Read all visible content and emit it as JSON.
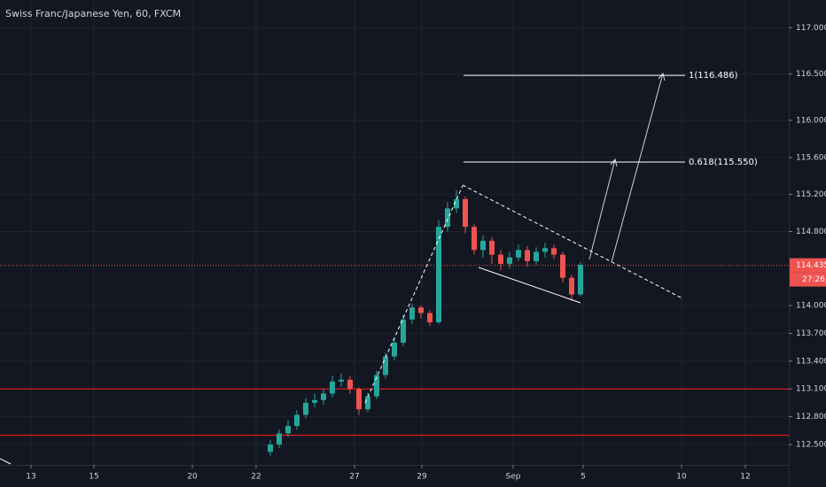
{
  "header": {
    "title": "Swiss Franc/Japanese Yen, 60, FXCM"
  },
  "chart_data": {
    "type": "candlestick",
    "x": [
      61,
      63,
      65,
      67,
      69,
      71,
      73,
      75,
      77,
      79,
      81,
      83,
      85,
      87,
      89,
      91,
      93,
      95,
      97,
      99,
      101,
      103,
      105,
      107,
      109,
      111,
      113,
      115,
      117,
      119,
      121,
      123,
      125,
      127,
      129,
      131
    ],
    "open": [
      112.42,
      112.5,
      112.62,
      112.7,
      112.82,
      112.95,
      112.98,
      113.05,
      113.18,
      113.2,
      113.1,
      112.88,
      113.02,
      113.25,
      113.45,
      113.6,
      113.85,
      113.98,
      113.92,
      113.82,
      114.85,
      115.05,
      115.15,
      114.85,
      114.6,
      114.7,
      114.55,
      114.45,
      114.52,
      114.6,
      114.48,
      114.58,
      114.62,
      114.55,
      114.3,
      114.12
    ],
    "high": [
      112.55,
      112.66,
      112.76,
      112.87,
      113.0,
      113.05,
      113.1,
      113.24,
      113.27,
      113.24,
      113.12,
      113.06,
      113.3,
      113.49,
      113.65,
      113.9,
      114.02,
      114.0,
      113.95,
      114.92,
      115.12,
      115.25,
      115.18,
      114.88,
      114.76,
      114.74,
      114.6,
      114.58,
      114.66,
      114.64,
      114.63,
      114.68,
      114.66,
      114.58,
      114.33,
      114.47
    ],
    "low": [
      112.38,
      112.46,
      112.58,
      112.66,
      112.78,
      112.9,
      112.93,
      113.01,
      113.12,
      113.05,
      112.82,
      112.85,
      112.99,
      113.21,
      113.41,
      113.56,
      113.8,
      113.86,
      113.78,
      113.8,
      114.8,
      115.0,
      114.78,
      114.55,
      114.52,
      114.45,
      114.38,
      114.4,
      114.48,
      114.42,
      114.44,
      114.52,
      114.5,
      114.25,
      114.05,
      114.1
    ],
    "close": [
      112.5,
      112.62,
      112.7,
      112.82,
      112.95,
      112.98,
      113.05,
      113.18,
      113.2,
      113.1,
      112.88,
      113.02,
      113.25,
      113.45,
      113.6,
      113.85,
      113.98,
      113.92,
      113.82,
      114.85,
      115.05,
      115.15,
      114.85,
      114.6,
      114.7,
      114.55,
      114.45,
      114.52,
      114.6,
      114.48,
      114.58,
      114.62,
      114.55,
      114.3,
      114.12,
      114.44
    ],
    "up_color": "#26a69a",
    "down_color": "#ef5350",
    "xlim": [
      0,
      178
    ],
    "xticks": [
      {
        "value": 7,
        "label": "13"
      },
      {
        "value": 21.2,
        "label": "15"
      },
      {
        "value": 43.4,
        "label": "20"
      },
      {
        "value": 57.8,
        "label": "22"
      },
      {
        "value": 80,
        "label": "27"
      },
      {
        "value": 95.2,
        "label": "29"
      },
      {
        "value": 115.8,
        "label": "Sep"
      },
      {
        "value": 131.6,
        "label": "5"
      },
      {
        "value": 153.8,
        "label": "10"
      },
      {
        "value": 168.2,
        "label": "12"
      }
    ],
    "ylim": [
      112.28,
      117.3
    ],
    "yticks": [
      {
        "value": 117,
        "label": "117.000"
      },
      {
        "value": 116.5,
        "label": "116.500"
      },
      {
        "value": 116,
        "label": "116.000"
      },
      {
        "value": 115.6,
        "label": "115.600"
      },
      {
        "value": 115.2,
        "label": "115.200"
      },
      {
        "value": 114.8,
        "label": "114.800"
      },
      {
        "value": 114,
        "label": "114.000"
      },
      {
        "value": 113.7,
        "label": "113.700"
      },
      {
        "value": 113.4,
        "label": "113.400"
      },
      {
        "value": 113.1,
        "label": "113.100"
      },
      {
        "value": 112.8,
        "label": "112.800"
      },
      {
        "value": 112.5,
        "label": "112.500"
      }
    ],
    "grid": true,
    "last_price": {
      "value": 114.435,
      "label": "114.435",
      "color": "#ef5350"
    },
    "countdown": "27:26",
    "levels": [
      {
        "value": 113.1,
        "color": "#ff1a1a"
      },
      {
        "value": 112.6,
        "color": "#ff1a1a"
      }
    ],
    "fib_levels": [
      {
        "value": 116.486,
        "label": "1(116.486)"
      },
      {
        "value": 115.55,
        "label": "0.618(115.550)"
      }
    ]
  }
}
